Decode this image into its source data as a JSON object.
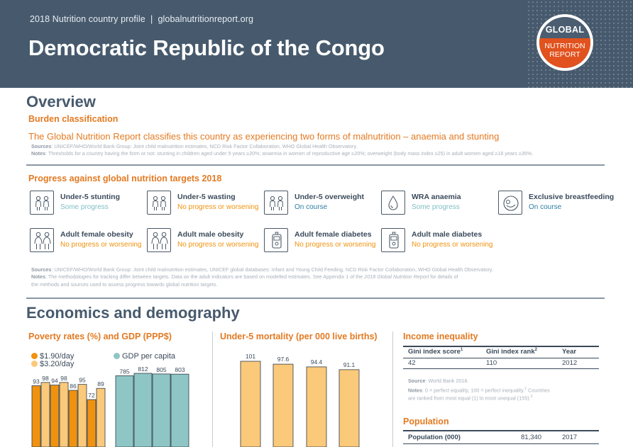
{
  "header": {
    "subtitle": "2018 Nutrition country profile",
    "separator": "|",
    "site": "globalnutritionreport.org",
    "title": "Democratic Republic of the Congo",
    "logo": {
      "top": "GLOBAL",
      "line1": "NUTRITION",
      "line2": "REPORT"
    }
  },
  "overview": {
    "title": "Overview",
    "burden_heading": "Burden classification",
    "burden_text": "The Global Nutrition Report classifies this country as experiencing two forms of malnutrition – anaemia and stunting",
    "sources_label": "Sources",
    "sources_text": ": UNICEF/WHO/World Bank Group: Joint child malnutrition estimates, NCD Risk Factor Collaboration, WHO Global Health Observatory.",
    "notes_label": "Notes",
    "notes_text": ": Thresholds for a country having the form or not: stunting in children aged under 5 years ≥20%; anaemia in women of reproductive age ≥20%; overweight (body mass index ≥25) in adult women aged ≥18 years ≥35%."
  },
  "progress": {
    "heading": "Progress against global nutrition targets 2018",
    "colors": {
      "some": "#7fbec4",
      "none": "#f0920f",
      "ontrack": "#2e7fa6"
    },
    "targets": [
      {
        "label": "Under-5 stunting",
        "status": "Some progress",
        "kind": "some",
        "icon": "two-children-icon"
      },
      {
        "label": "Under-5 wasting",
        "status": "No progress or worsening",
        "kind": "none",
        "icon": "two-children-icon"
      },
      {
        "label": "Under-5 overweight",
        "status": "On course",
        "kind": "ontrack",
        "icon": "two-children-icon"
      },
      {
        "label": "WRA anaemia",
        "status": "Some progress",
        "kind": "some",
        "icon": "blood-drop-icon"
      },
      {
        "label": "Exclusive breastfeeding",
        "status": "On course",
        "kind": "ontrack",
        "icon": "breastfeeding-icon"
      },
      {
        "label": "Adult female obesity",
        "status": "No progress or worsening",
        "kind": "none",
        "icon": "two-adults-icon"
      },
      {
        "label": "Adult male obesity",
        "status": "No progress or worsening",
        "kind": "none",
        "icon": "two-adults-icon"
      },
      {
        "label": "Adult female diabetes",
        "status": "No progress or worsening",
        "kind": "none",
        "icon": "glucose-meter-icon"
      },
      {
        "label": "Adult male diabetes",
        "status": "No progress or worsening",
        "kind": "none",
        "icon": "glucose-meter-icon"
      }
    ],
    "sources_label": "Sources",
    "sources_text": ": UNICEF/WHO/World Bank Group: Joint child malnutrition estimates, UNICEF global databases: Infant and Young Child Feeding, NCD Risk Factor Collaboration, WHO Global Health Observatory.",
    "notes_label": "Notes",
    "notes_text1": ": The methodologies for tracking differ between targets. Data on the adult indicators are based on modelled estimates. See Appendix 1 of the ",
    "notes_italic": "2018 Global Nutrition Report",
    "notes_text2": " for details of",
    "notes_line2": "the methods and sources used to assess progress towards global nutrition targets."
  },
  "economics": {
    "title": "Economics and demography",
    "poverty": {
      "title": "Poverty rates (%) and GDP (PPP$)",
      "legend": [
        {
          "label": "$1.90/day",
          "color": "#f0920f"
        },
        {
          "label": "$3.20/day",
          "color": "#fbc97a"
        },
        {
          "label": "GDP per capita",
          "color": "#8ec6c5"
        }
      ]
    },
    "mortality": {
      "title": "Under-5 mortality (per 000 live births)"
    },
    "income": {
      "title": "Income inequality",
      "headers": [
        "Gini index score",
        "Gini index rank",
        "Year"
      ],
      "header_sups": [
        "1",
        "2",
        ""
      ],
      "row": [
        "42",
        "110",
        "2012"
      ],
      "source_label": "Source",
      "source_text": ": World Bank 2018.",
      "notes_label": "Notes",
      "notes_text": ": 0 = perfect equality, 100 = perfect inequality.",
      "notes_sup1": "1",
      "notes_text2": " Countries",
      "notes_line2": "are ranked from most equal (1) to most unequal (155).",
      "notes_sup2": "2"
    },
    "population": {
      "title": "Population",
      "label": "Population (000)",
      "value": "81,340",
      "year": "2017"
    }
  },
  "chart_data": [
    {
      "type": "bar",
      "title": "Poverty rates (%) and GDP (PPP$)",
      "series": [
        {
          "name": "$1.90/day",
          "values": [
            93,
            94,
            86,
            72
          ],
          "labels": [
            "93",
            "94",
            "86",
            "72"
          ],
          "color": "#f0920f"
        },
        {
          "name": "$3.20/day",
          "values": [
            98,
            98,
            95,
            89
          ],
          "labels": [
            "98",
            "98",
            "95",
            "89"
          ],
          "color": "#fbc97a"
        },
        {
          "name": "GDP per capita",
          "values": [
            785,
            812,
            805,
            803
          ],
          "labels": [
            "785",
            "812",
            "805",
            "803"
          ],
          "color": "#8ec6c5"
        }
      ]
    },
    {
      "type": "bar",
      "title": "Under-5 mortality (per 000 live births)",
      "values": [
        101,
        97.6,
        94.4,
        91.1
      ],
      "labels": [
        "101",
        "97.6",
        "94.4",
        "91.1"
      ],
      "color": "#fbc97a"
    }
  ]
}
